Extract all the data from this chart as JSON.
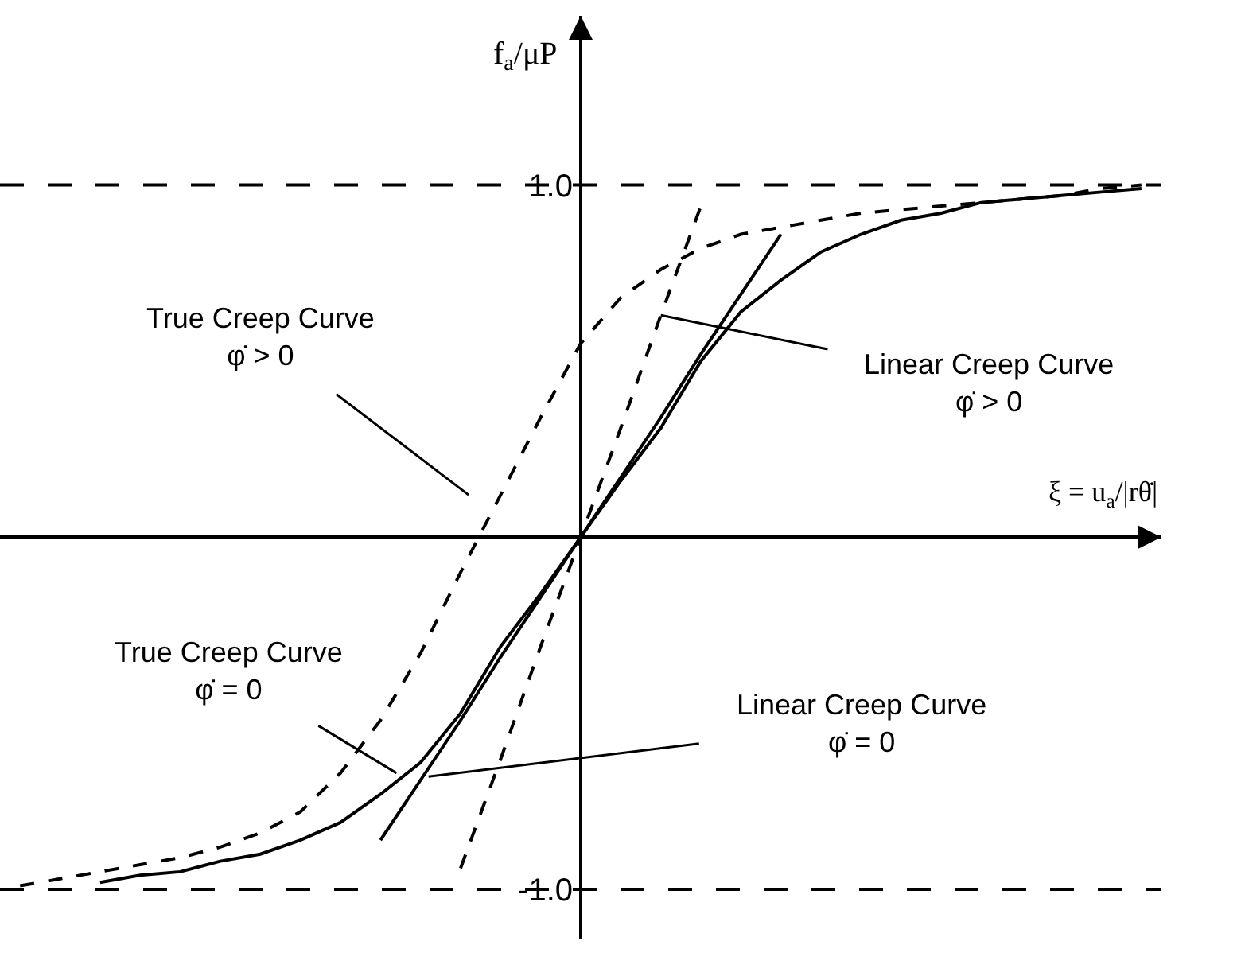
{
  "chart_data": {
    "type": "line",
    "xlabel": "ξ = u$_{a}$/|rθ̇|",
    "ylabel": "f$_{a}$/μP",
    "categories": [
      null,
      null,
      null,
      null,
      null,
      null,
      null,
      null,
      null,
      null,
      null,
      null,
      null,
      null,
      null,
      null,
      null,
      null,
      null,
      null,
      null,
      null,
      null,
      null,
      null,
      null,
      null,
      null,
      null
    ],
    "series": [
      {
        "color": "#000000",
        "line_style": "dashed",
        "values": [
          -0.99,
          -0.97,
          -0.95,
          -0.93,
          -0.91,
          -0.88,
          -0.84,
          -0.78,
          -0.67,
          -0.52,
          -0.33,
          -0.1,
          0.12,
          0.34,
          0.55,
          0.68,
          0.76,
          0.82,
          0.86,
          0.88,
          0.9,
          0.92,
          0.93,
          0.94,
          0.95,
          0.96,
          0.97,
          0.99,
          1.0
        ]
      },
      {
        "color": "#000000",
        "line_style": "solid",
        "values": [
          null,
          null,
          -0.98,
          -0.96,
          -0.95,
          -0.92,
          -0.9,
          -0.86,
          -0.81,
          -0.73,
          -0.64,
          -0.5,
          -0.31,
          -0.16,
          0,
          0.16,
          0.31,
          0.5,
          0.64,
          0.73,
          0.81,
          0.86,
          0.9,
          0.92,
          0.95,
          0.96,
          0.97,
          0.98,
          0.99
        ]
      },
      {
        "color": "#000000",
        "line_style": "solid",
        "values": [
          null,
          null,
          null,
          null,
          null,
          null,
          null,
          null,
          null,
          -0.86,
          -0.69,
          -0.52,
          -0.34,
          -0.17,
          0,
          0.17,
          0.34,
          0.52,
          0.69,
          0.86,
          null,
          null,
          null,
          null,
          null,
          null,
          null,
          null,
          null
        ]
      },
      {
        "color": "#000000",
        "line_style": "dashed",
        "values": [
          null,
          null,
          null,
          null,
          null,
          null,
          null,
          null,
          null,
          null,
          null,
          -0.94,
          -0.63,
          -0.31,
          0,
          0.31,
          0.63,
          0.94,
          null,
          null,
          null,
          null,
          null,
          null,
          null,
          null,
          null,
          null,
          null
        ]
      }
    ],
    "ylim": [
      -1.14,
      1.48
    ],
    "yticks": [
      {
        "value": 1,
        "label": "1.0"
      },
      {
        "value": -1,
        "label": "-1.0"
      }
    ],
    "ref_lines": [
      {
        "axis": "y",
        "value": 1,
        "color": "#000000",
        "line_style": "dashed"
      },
      {
        "axis": "y",
        "value": -1,
        "color": "#000000",
        "line_style": "dashed"
      }
    ],
    "annotations": [
      "True Creep Curve\nφ̇ > 0",
      "Linear Creep Curve\nφ̇ > 0",
      "True Creep Curve\nφ̇ = 0",
      "Linear Creep Curve\nφ̇ = 0"
    ],
    "tick_labels": "y",
    "marker": "none"
  }
}
